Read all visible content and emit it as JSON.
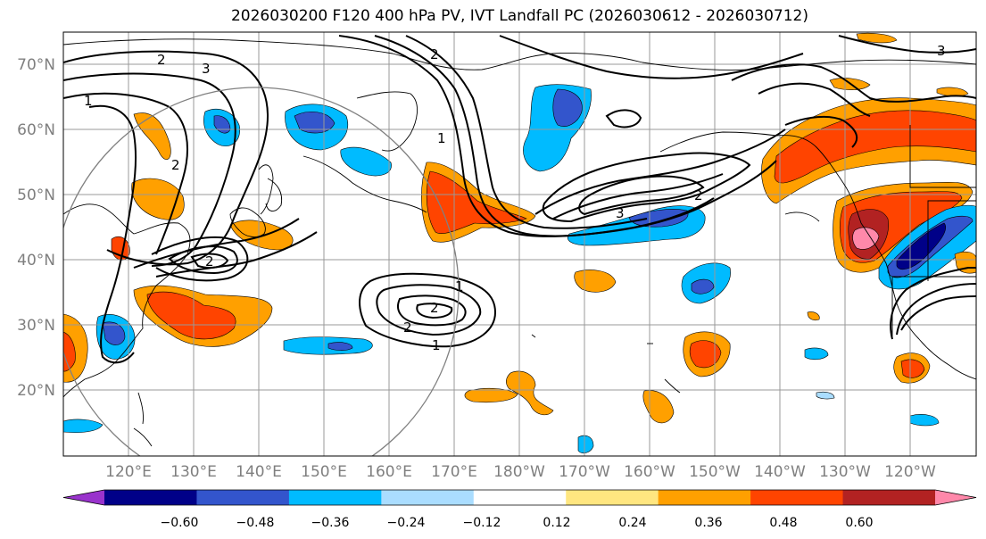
{
  "title": "2026030200 F120 400 hPa PV, IVT Landfall PC (2026030612 - 2026030712)",
  "latitude_labels": [
    "70°N",
    "60°N",
    "50°N",
    "40°N",
    "30°N",
    "20°N"
  ],
  "longitude_labels": [
    "120°E",
    "130°E",
    "140°E",
    "150°E",
    "160°E",
    "170°E",
    "180°W",
    "170°W",
    "160°W",
    "150°W",
    "140°W",
    "130°W",
    "120°W"
  ],
  "colorbar": {
    "tick_labels": [
      "−0.60",
      "−0.48",
      "−0.36",
      "−0.24",
      "−0.12",
      "0.12",
      "0.24",
      "0.36",
      "0.48",
      "0.60"
    ],
    "bin_colors": [
      "#9933cc",
      "#000088",
      "#3355cc",
      "#00bbff",
      "#aaddff",
      "#ffffff",
      "#ffe680",
      "#ffa000",
      "#ff4400",
      "#b22222",
      "#ff88aa"
    ]
  },
  "contour_labels": [
    "1",
    "2",
    "3"
  ],
  "colors": {
    "grid": "#999999",
    "coast": "#000000",
    "contour": "#000000",
    "circle": "#808080"
  }
}
